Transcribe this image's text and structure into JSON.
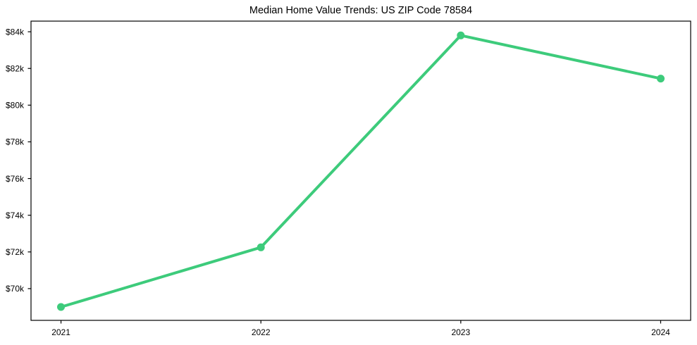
{
  "window": {
    "background": "#ffffff"
  },
  "colors": {
    "line": "#3dcb7b",
    "axis": "#000000",
    "text": "#000000",
    "background": "#ffffff"
  },
  "chart_data": {
    "type": "line",
    "title": "Median Home Value Trends: US ZIP Code 78584",
    "x": [
      2021,
      2022,
      2023,
      2024
    ],
    "xtick_labels": [
      "2021",
      "2022",
      "2023",
      "2024"
    ],
    "values": [
      69000,
      72250,
      83800,
      81450
    ],
    "yticks": [
      70000,
      72000,
      74000,
      76000,
      78000,
      80000,
      82000,
      84000
    ],
    "ytick_labels": [
      "$70k",
      "$72k",
      "$74k",
      "$76k",
      "$78k",
      "$80k",
      "$82k",
      "$84k"
    ],
    "xlim": [
      2020.85,
      2024.15
    ],
    "ylim": [
      68270,
      84580
    ],
    "xlabel": "",
    "ylabel": "",
    "grid": false,
    "legend": "none",
    "marker": "circle",
    "line_color": "#3dcb7b",
    "line_width": 4,
    "marker_radius": 5.5
  }
}
